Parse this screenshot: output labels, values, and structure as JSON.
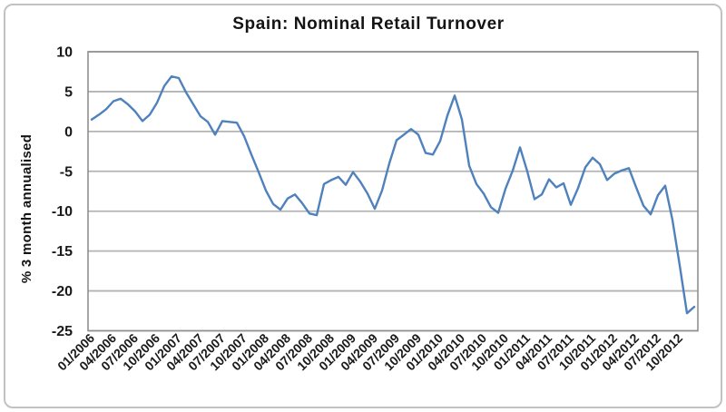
{
  "chart": {
    "title": "Spain: Nominal Retail Turnover",
    "y_axis_title": "% 3 month annualised"
  },
  "colors": {
    "line": "#4F81BD",
    "grid": "#b3b3b3",
    "plot_border": "#8f8f8f",
    "text": "#141414"
  },
  "chart_data": {
    "type": "line",
    "title": "Spain: Nominal Retail Turnover",
    "xlabel": "",
    "ylabel": "% 3 month annualised",
    "ylim": [
      -25,
      10
    ],
    "yticks": [
      10,
      5,
      0,
      -5,
      -10,
      -15,
      -20,
      -25
    ],
    "grid": true,
    "legend_position": "none",
    "x_tick_every": 3,
    "x": [
      "01/2006",
      "02/2006",
      "03/2006",
      "04/2006",
      "05/2006",
      "06/2006",
      "07/2006",
      "08/2006",
      "09/2006",
      "10/2006",
      "11/2006",
      "12/2006",
      "01/2007",
      "02/2007",
      "03/2007",
      "04/2007",
      "05/2007",
      "06/2007",
      "07/2007",
      "08/2007",
      "09/2007",
      "10/2007",
      "11/2007",
      "12/2007",
      "01/2008",
      "02/2008",
      "03/2008",
      "04/2008",
      "05/2008",
      "06/2008",
      "07/2008",
      "08/2008",
      "09/2008",
      "10/2008",
      "11/2008",
      "12/2008",
      "01/2009",
      "02/2009",
      "03/2009",
      "04/2009",
      "05/2009",
      "06/2009",
      "07/2009",
      "08/2009",
      "09/2009",
      "10/2009",
      "11/2009",
      "12/2009",
      "01/2010",
      "02/2010",
      "03/2010",
      "04/2010",
      "05/2010",
      "06/2010",
      "07/2010",
      "08/2010",
      "09/2010",
      "10/2010",
      "11/2010",
      "12/2010",
      "01/2011",
      "02/2011",
      "03/2011",
      "04/2011",
      "05/2011",
      "06/2011",
      "07/2011",
      "08/2011",
      "09/2011",
      "10/2011",
      "11/2011",
      "12/2011",
      "01/2012",
      "02/2012",
      "03/2012",
      "04/2012",
      "05/2012",
      "06/2012",
      "07/2012",
      "08/2012",
      "09/2012",
      "10/2012",
      "11/2012",
      "12/2012"
    ],
    "series": [
      {
        "name": "Nominal retail turnover, % 3 month annualised",
        "values": [
          1.5,
          2.1,
          2.8,
          3.8,
          4.1,
          3.4,
          2.5,
          1.3,
          2.1,
          3.6,
          5.7,
          6.9,
          6.7,
          4.9,
          3.4,
          1.9,
          1.2,
          -0.4,
          1.3,
          1.2,
          1.1,
          -0.6,
          -2.9,
          -5.1,
          -7.4,
          -9.1,
          -9.8,
          -8.4,
          -7.9,
          -9.0,
          -10.3,
          -10.5,
          -6.6,
          -6.1,
          -5.7,
          -6.7,
          -5.1,
          -6.3,
          -7.8,
          -9.7,
          -7.4,
          -4.0,
          -1.1,
          -0.4,
          0.3,
          -0.4,
          -2.7,
          -2.9,
          -1.2,
          2.0,
          4.5,
          1.5,
          -4.3,
          -6.6,
          -7.8,
          -9.5,
          -10.2,
          -7.2,
          -4.9,
          -2.0,
          -5.0,
          -8.5,
          -7.9,
          -6.0,
          -7.0,
          -6.5,
          -9.2,
          -7.1,
          -4.5,
          -3.3,
          -4.1,
          -6.1,
          -5.3,
          -4.9,
          -4.6,
          -7.0,
          -9.3,
          -10.4,
          -8.0,
          -6.8,
          -11.1,
          -16.8,
          -22.8,
          -22.0
        ]
      }
    ]
  }
}
